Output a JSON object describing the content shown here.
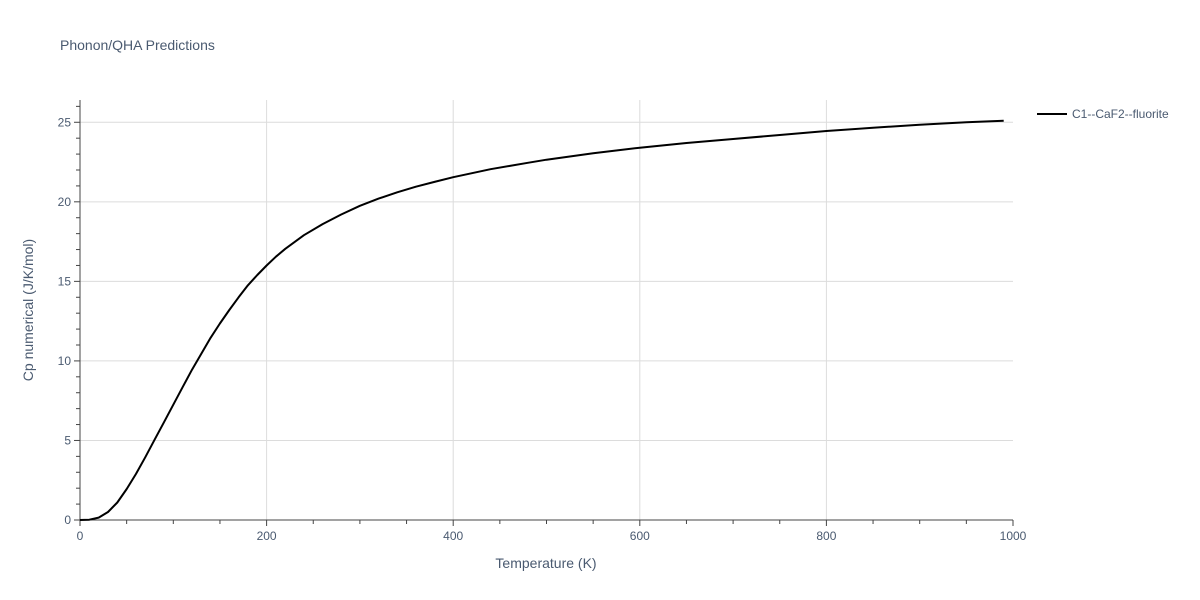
{
  "chart_data": {
    "type": "line",
    "title": "Phonon/QHA Predictions",
    "xlabel": "Temperature (K)",
    "ylabel": "Cp numerical (J/K/mol)",
    "xlim": [
      0,
      1000
    ],
    "ylim": [
      0,
      26.4
    ],
    "x_ticks": [
      0,
      200,
      400,
      600,
      800,
      1000
    ],
    "x_tick_labels": [
      "0",
      "200",
      "400",
      "600",
      "800",
      "1000"
    ],
    "y_ticks": [
      0,
      5,
      10,
      15,
      20,
      25
    ],
    "y_tick_labels": [
      "0",
      "5",
      "10",
      "15",
      "20",
      "25"
    ],
    "grid": true,
    "legend_position": "top-right",
    "series": [
      {
        "name": "C1--CaF2--fluorite",
        "color": "#000000",
        "x": [
          0,
          10,
          20,
          30,
          40,
          50,
          60,
          70,
          80,
          90,
          100,
          110,
          120,
          130,
          140,
          150,
          160,
          170,
          180,
          190,
          200,
          210,
          220,
          240,
          260,
          280,
          300,
          320,
          340,
          360,
          380,
          400,
          420,
          440,
          460,
          480,
          500,
          550,
          600,
          650,
          700,
          750,
          800,
          850,
          900,
          950,
          990
        ],
        "y": [
          0,
          0.02,
          0.15,
          0.5,
          1.1,
          1.95,
          2.9,
          3.95,
          5.05,
          6.15,
          7.25,
          8.35,
          9.45,
          10.45,
          11.45,
          12.35,
          13.2,
          14.0,
          14.75,
          15.4,
          16.0,
          16.55,
          17.05,
          17.9,
          18.6,
          19.2,
          19.75,
          20.2,
          20.6,
          20.95,
          21.25,
          21.55,
          21.8,
          22.05,
          22.25,
          22.45,
          22.65,
          23.05,
          23.4,
          23.7,
          23.95,
          24.2,
          24.45,
          24.65,
          24.85,
          25.0,
          25.1
        ]
      }
    ]
  }
}
